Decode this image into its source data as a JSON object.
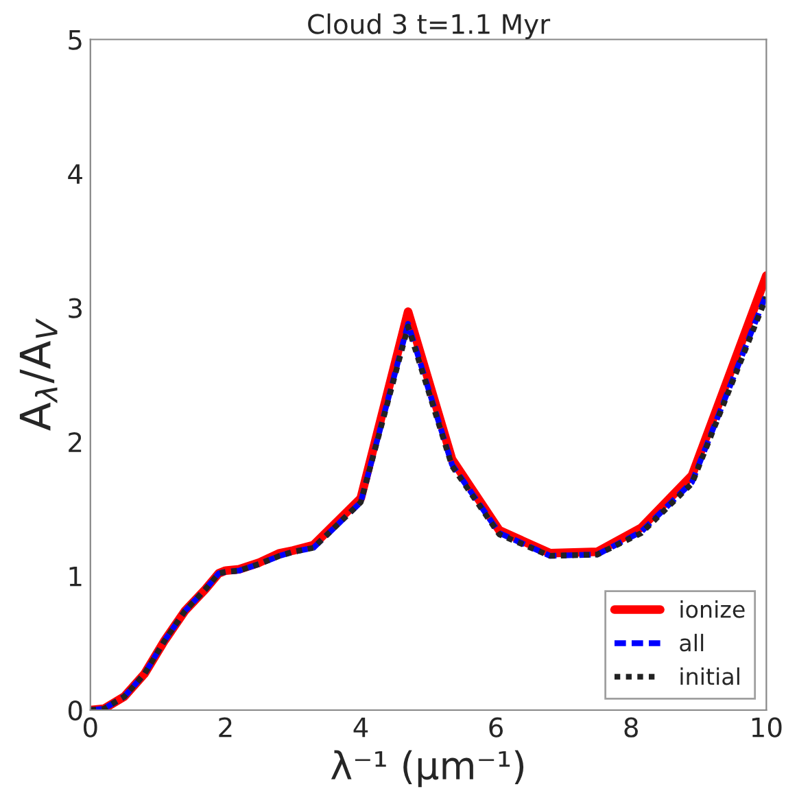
{
  "chart_data": {
    "type": "line",
    "title": "Cloud 3 t=1.1 Myr",
    "xlabel": "λ⁻¹ (μm⁻¹)",
    "ylabel": "A$_{λ}$/A$_{V}$",
    "xlim": [
      0,
      10
    ],
    "ylim": [
      0,
      5
    ],
    "xticks": [
      0,
      2,
      4,
      6,
      8,
      10
    ],
    "yticks": [
      0,
      1,
      2,
      3,
      4,
      5
    ],
    "grid": false,
    "legend": "bottom right",
    "marker": "none",
    "series": [
      {
        "name": "ionize",
        "color": "#ff0000",
        "line_style": "solid",
        "x": [
          0,
          0.2,
          0.5,
          0.8,
          1.1,
          1.4,
          1.7,
          1.9,
          2.0,
          2.2,
          2.5,
          2.8,
          3.0,
          3.3,
          4.0,
          4.7,
          5.35,
          6.05,
          6.8,
          7.5,
          8.15,
          8.9,
          10
        ],
        "values": [
          0,
          0.01,
          0.1,
          0.27,
          0.52,
          0.74,
          0.9,
          1.02,
          1.04,
          1.05,
          1.1,
          1.17,
          1.19,
          1.23,
          1.58,
          2.97,
          1.87,
          1.34,
          1.17,
          1.18,
          1.36,
          1.75,
          3.24
        ]
      },
      {
        "name": "all",
        "color": "#0000ff",
        "line_style": "dashed",
        "x": [
          0,
          0.2,
          0.5,
          0.8,
          1.1,
          1.4,
          1.7,
          1.9,
          2.0,
          2.2,
          2.5,
          2.8,
          3.0,
          3.3,
          4.0,
          4.7,
          5.35,
          6.05,
          6.8,
          7.5,
          8.15,
          8.9,
          10
        ],
        "values": [
          0,
          0.01,
          0.1,
          0.27,
          0.52,
          0.74,
          0.9,
          1.02,
          1.03,
          1.04,
          1.09,
          1.15,
          1.18,
          1.21,
          1.55,
          2.88,
          1.83,
          1.32,
          1.15,
          1.16,
          1.33,
          1.7,
          3.1
        ]
      },
      {
        "name": "initial",
        "color": "#222222",
        "line_style": "dotted",
        "x": [
          0,
          0.2,
          0.5,
          0.8,
          1.1,
          1.4,
          1.7,
          1.9,
          2.0,
          2.2,
          2.5,
          2.8,
          3.0,
          3.3,
          4.0,
          4.7,
          5.35,
          6.05,
          6.8,
          7.5,
          8.15,
          8.9,
          10
        ],
        "values": [
          0,
          0.01,
          0.1,
          0.27,
          0.52,
          0.74,
          0.9,
          1.02,
          1.03,
          1.04,
          1.09,
          1.15,
          1.18,
          1.21,
          1.55,
          2.86,
          1.82,
          1.31,
          1.15,
          1.16,
          1.32,
          1.69,
          3.08
        ]
      }
    ]
  }
}
